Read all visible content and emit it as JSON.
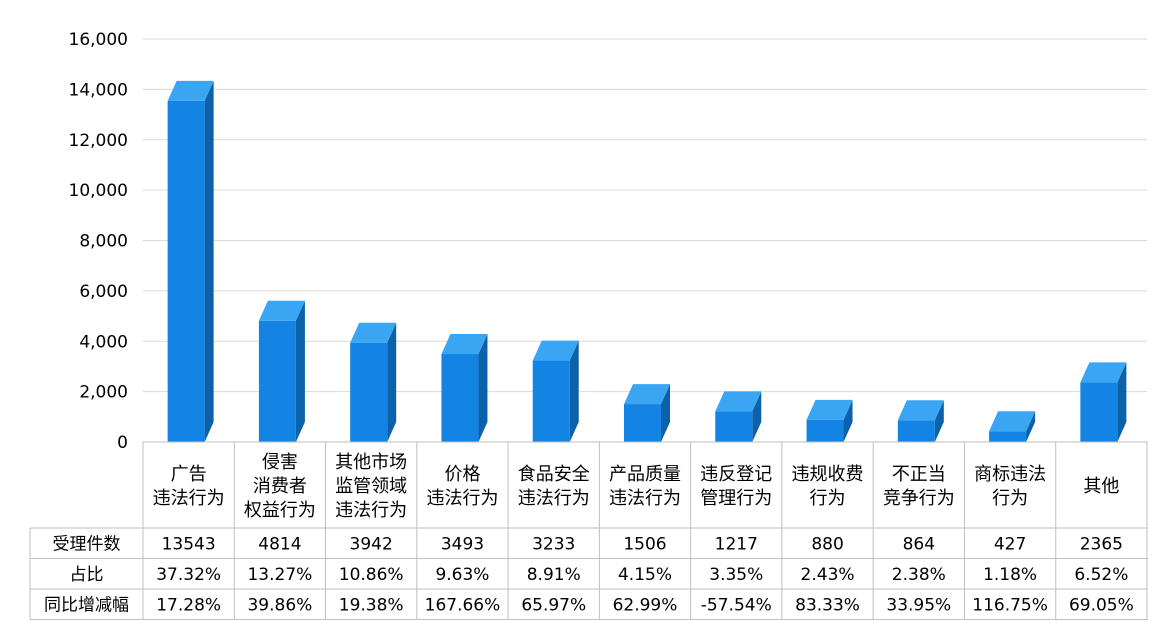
{
  "chart_data": {
    "type": "bar",
    "style": "3d-column",
    "categories": [
      [
        "广告",
        "违法行为"
      ],
      [
        "侵害",
        "消费者",
        "权益行为"
      ],
      [
        "其他市场",
        "监管领域",
        "违法行为"
      ],
      [
        "价格",
        "违法行为"
      ],
      [
        "食品安全",
        "违法行为"
      ],
      [
        "产品质量",
        "违法行为"
      ],
      [
        "违反登记",
        "管理行为"
      ],
      [
        "违规收费",
        "行为"
      ],
      [
        "不正当",
        "竞争行为"
      ],
      [
        "商标违法",
        "行为"
      ],
      [
        "其他"
      ]
    ],
    "series": [
      {
        "name": "受理件数",
        "values": [
          13543,
          4814,
          3942,
          3493,
          3233,
          1506,
          1217,
          880,
          864,
          427,
          2365
        ]
      }
    ],
    "y_ticks": [
      "0",
      "2,000",
      "4,000",
      "6,000",
      "8,000",
      "10,000",
      "12,000",
      "14,000",
      "16,000"
    ],
    "ylim": [
      0,
      16000
    ],
    "grid": true,
    "bar_color": "#1384e3",
    "data_table": {
      "rows": [
        {
          "label": "受理件数",
          "cells": [
            "13543",
            "4814",
            "3942",
            "3493",
            "3233",
            "1506",
            "1217",
            "880",
            "864",
            "427",
            "2365"
          ]
        },
        {
          "label": "占比",
          "cells": [
            "37.32%",
            "13.27%",
            "10.86%",
            "9.63%",
            "8.91%",
            "4.15%",
            "3.35%",
            "2.43%",
            "2.38%",
            "1.18%",
            "6.52%"
          ]
        },
        {
          "label": "同比增减幅",
          "cells": [
            "17.28%",
            "39.86%",
            "19.38%",
            "167.66%",
            "65.97%",
            "62.99%",
            "-57.54%",
            "83.33%",
            "33.95%",
            "116.75%",
            "69.05%"
          ]
        }
      ]
    }
  }
}
